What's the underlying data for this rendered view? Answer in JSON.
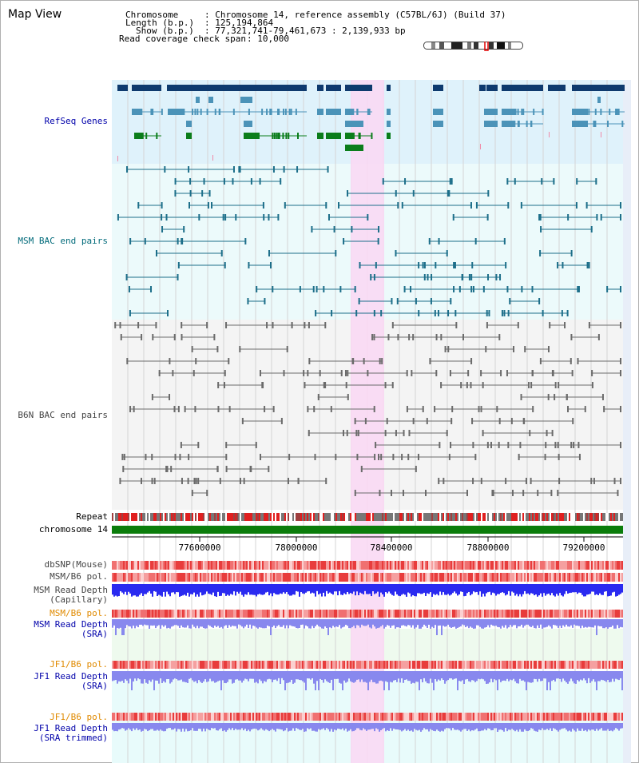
{
  "header": {
    "title": "Map View",
    "chromosome_label": "Chromosome",
    "chromosome_value": ": Chromosome 14, reference assembly (C57BL/6J) (Build 37)",
    "length_label": "Length (b.p.)",
    "length_value": ": 125,194,864",
    "show_label": "Show (b.p.)",
    "show_value": ": 77,321,741-79,461,673 : 2,139,933 bp",
    "coverage_label": "Read coverage check span",
    "coverage_value": ": 10,000"
  },
  "tracks": {
    "refseq": "RefSeq Genes",
    "msm_bac": "MSM BAC end pairs",
    "b6n_bac": "B6N BAC end pairs",
    "repeat": "Repeat",
    "chromosome": "chromosome 14",
    "dbsnp": "dbSNP(Mouse)",
    "msm_b6_pol_1": "MSM/B6 pol.",
    "msm_read_depth_cap_1": "MSM Read Depth",
    "msm_read_depth_cap_2": "(Capillary)",
    "msm_b6_pol_2": "MSM/B6 pol.",
    "msm_read_depth_sra_1": "MSM Read Depth",
    "msm_read_depth_sra_2": "(SRA)",
    "jf1_b6_pol_1": "JF1/B6 pol.",
    "jf1_read_depth_sra_1": "JF1 Read Depth",
    "jf1_read_depth_sra_2": "(SRA)",
    "jf1_b6_pol_2": "JF1/B6 pol.",
    "jf1_read_depth_trim_1": "JF1 Read Depth",
    "jf1_read_depth_trim_2": "(SRA trimmed)"
  },
  "axis": {
    "ticks": [
      "77600000",
      "78000000",
      "78400000",
      "78800000",
      "79200000"
    ]
  },
  "colors": {
    "refseq_bg": "#dff2fb",
    "msm_bac_bg": "#ecfafb",
    "b6n_bac_bg": "#f4f4f4",
    "highlight": "#f9d9f4",
    "gene_dark": "#0e3a6e",
    "gene_mid": "#4b93b8",
    "gene_green": "#0b7d1b",
    "msm_pair": "#1d6f8a",
    "b6n_pair": "#6b6b6b",
    "chromosome_bar": "#0b7d0b",
    "depth_blue": "#2a2af0",
    "depth_light": "#8888ee",
    "pol_red": "#e85050",
    "label_blue": "#0000aa",
    "label_teal": "#006a7a",
    "label_orange": "#e08a00"
  }
}
